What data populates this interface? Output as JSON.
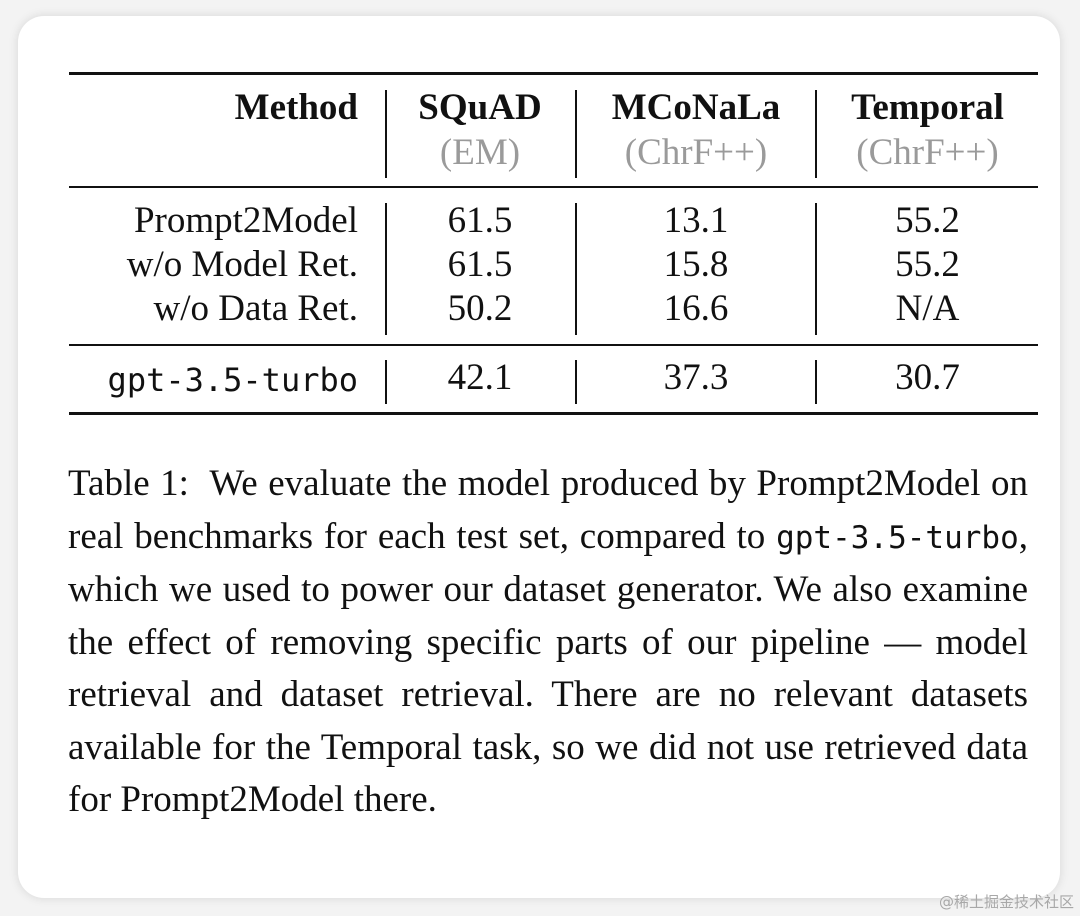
{
  "table": {
    "headers": [
      {
        "title": "Method",
        "subtitle": ""
      },
      {
        "title": "SQuAD",
        "subtitle": "(EM)"
      },
      {
        "title": "MCoNaLa",
        "subtitle": "(ChrF++)"
      },
      {
        "title": "Temporal",
        "subtitle": "(ChrF++)"
      }
    ],
    "rows": [
      {
        "method": "Prompt2Model",
        "squad": "61.5",
        "mconala": "13.1",
        "temporal": "55.2"
      },
      {
        "method": "w/o Model Ret.",
        "squad": "61.5",
        "mconala": "15.8",
        "temporal": "55.2"
      },
      {
        "method": "w/o Data Ret.",
        "squad": "50.2",
        "mconala": "16.6",
        "temporal": "N/A"
      }
    ],
    "baseline": {
      "method": "gpt-3.5-turbo",
      "squad": "42.1",
      "mconala": "37.3",
      "temporal": "30.7"
    }
  },
  "caption": {
    "label": "Table 1:",
    "part1": "We evaluate the model produced by Prompt2Model on real benchmarks for each test set, compared to ",
    "code": "gpt-3.5-turbo",
    "part2": ", which we used to power our dataset generator. We also examine the effect of removing specific parts of our pipeline — model retrieval and dataset retrieval.  There are no relevant datasets available for the Temporal task, so we did not use retrieved data for Prompt2Model there."
  },
  "watermark": "@稀土掘金技术社区"
}
